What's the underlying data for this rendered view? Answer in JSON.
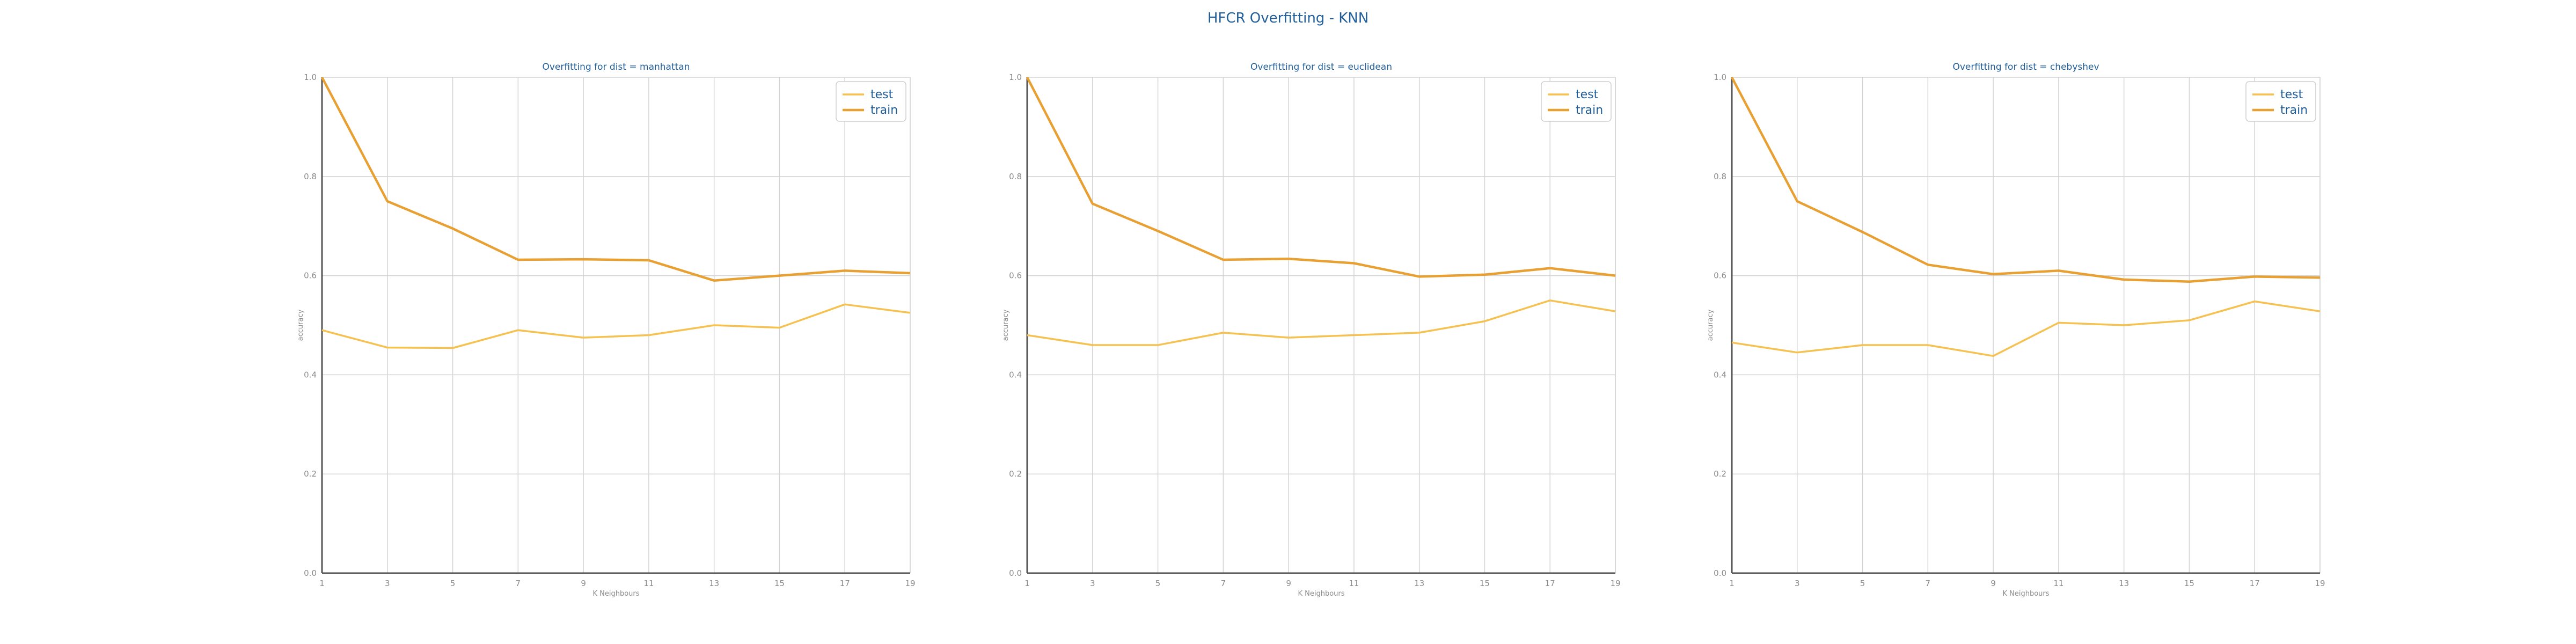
{
  "figure_title": "HFCR Overfitting - KNN",
  "colors": {
    "test": "#f5c151",
    "train": "#e8a033",
    "title": "#1f5e99",
    "grid": "#d4d4d4",
    "axis": "#555555"
  },
  "chart_data": [
    {
      "type": "line",
      "title": "Overfitting for dist = manhattan",
      "xlabel": "K Neighbours",
      "ylabel": "accuracy",
      "x": [
        1,
        3,
        5,
        7,
        9,
        11,
        13,
        15,
        17,
        19
      ],
      "ylim": [
        0,
        1
      ],
      "yticks": [
        "0.0",
        "0.2",
        "0.4",
        "0.6",
        "0.8",
        "1.0"
      ],
      "xticks": [
        "1",
        "3",
        "5",
        "7",
        "9",
        "11",
        "13",
        "15",
        "17",
        "19"
      ],
      "grid": true,
      "legend": "top-right",
      "series": [
        {
          "name": "test",
          "values": [
            0.49,
            0.455,
            0.454,
            0.49,
            0.475,
            0.48,
            0.5,
            0.495,
            0.542,
            0.525
          ]
        },
        {
          "name": "train",
          "values": [
            1.0,
            0.75,
            0.695,
            0.632,
            0.633,
            0.631,
            0.59,
            0.6,
            0.61,
            0.605
          ]
        }
      ]
    },
    {
      "type": "line",
      "title": "Overfitting for dist = euclidean",
      "xlabel": "K Neighbours",
      "ylabel": "accuracy",
      "x": [
        1,
        3,
        5,
        7,
        9,
        11,
        13,
        15,
        17,
        19
      ],
      "ylim": [
        0,
        1
      ],
      "yticks": [
        "0.0",
        "0.2",
        "0.4",
        "0.6",
        "0.8",
        "1.0"
      ],
      "xticks": [
        "1",
        "3",
        "5",
        "7",
        "9",
        "11",
        "13",
        "15",
        "17",
        "19"
      ],
      "grid": true,
      "legend": "top-right",
      "series": [
        {
          "name": "test",
          "values": [
            0.48,
            0.46,
            0.46,
            0.485,
            0.475,
            0.48,
            0.485,
            0.508,
            0.55,
            0.528
          ]
        },
        {
          "name": "train",
          "values": [
            1.0,
            0.745,
            0.69,
            0.632,
            0.634,
            0.625,
            0.598,
            0.602,
            0.615,
            0.6
          ]
        }
      ]
    },
    {
      "type": "line",
      "title": "Overfitting for dist = chebyshev",
      "xlabel": "K Neighbours",
      "ylabel": "accuracy",
      "x": [
        1,
        3,
        5,
        7,
        9,
        11,
        13,
        15,
        17,
        19
      ],
      "ylim": [
        0,
        1
      ],
      "yticks": [
        "0.0",
        "0.2",
        "0.4",
        "0.6",
        "0.8",
        "1.0"
      ],
      "xticks": [
        "1",
        "3",
        "5",
        "7",
        "9",
        "11",
        "13",
        "15",
        "17",
        "19"
      ],
      "grid": true,
      "legend": "top-right",
      "series": [
        {
          "name": "test",
          "values": [
            0.465,
            0.445,
            0.46,
            0.46,
            0.438,
            0.505,
            0.5,
            0.51,
            0.548,
            0.528
          ]
        },
        {
          "name": "train",
          "values": [
            1.0,
            0.75,
            0.688,
            0.622,
            0.603,
            0.61,
            0.592,
            0.588,
            0.598,
            0.596
          ]
        }
      ]
    }
  ]
}
